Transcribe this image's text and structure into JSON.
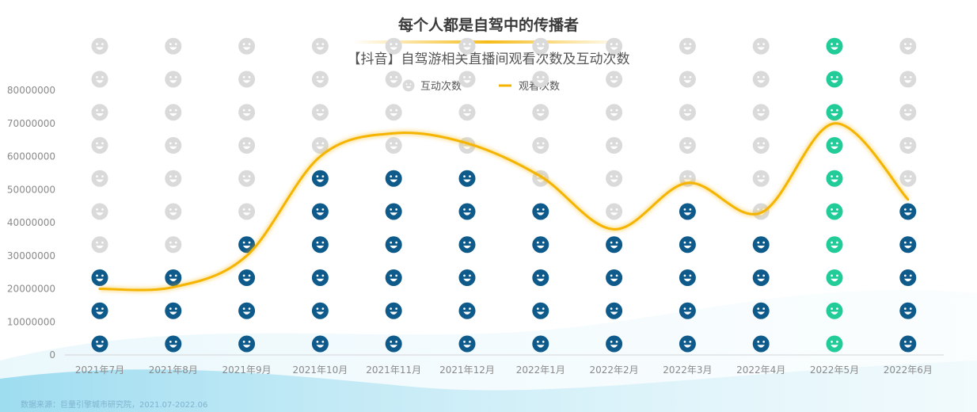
{
  "title": "每个人都是自驾中的传播者",
  "subtitle": "【抖音】自驾游相关直播间观看次数及互动次数",
  "source": "数据来源：巨量引擎城市研究院，2021.07-2022.06",
  "colors": {
    "line": "#F5B400",
    "filled_icon": "#0E5A8A",
    "highlight_icon": "#22CC99",
    "empty_icon": "#DADADA",
    "axis_text": "#8A8A8A"
  },
  "chart_data": {
    "type": "line",
    "title": "【抖音】自驾游相关直播间观看次数及互动次数",
    "categories": [
      "2021年7月",
      "2021年8月",
      "2021年9月",
      "2021年10月",
      "2021年11月",
      "2021年12月",
      "2022年1月",
      "2022年2月",
      "2022年3月",
      "2022年4月",
      "2022年5月",
      "2022年6月"
    ],
    "yticks": [
      "0",
      "10000000",
      "20000000",
      "30000000",
      "40000000",
      "50000000",
      "60000000",
      "70000000",
      "80000000"
    ],
    "ylim": [
      0,
      80000000
    ],
    "legend_position": "top-center",
    "grid": false,
    "highlight_category": "2022年5月",
    "icon_unit": 10000000,
    "series": [
      {
        "name": "互动次数",
        "kind": "pictogram-icons",
        "icon": "smiley-face-icon",
        "values": [
          3,
          3,
          4,
          6,
          6,
          6,
          5,
          4,
          5,
          4,
          10,
          5
        ]
      },
      {
        "name": "观看次数",
        "kind": "smooth-line",
        "values": [
          20000000,
          20500000,
          30000000,
          60000000,
          67000000,
          64000000,
          54000000,
          38000000,
          52000000,
          43000000,
          70000000,
          47000000
        ]
      }
    ]
  }
}
